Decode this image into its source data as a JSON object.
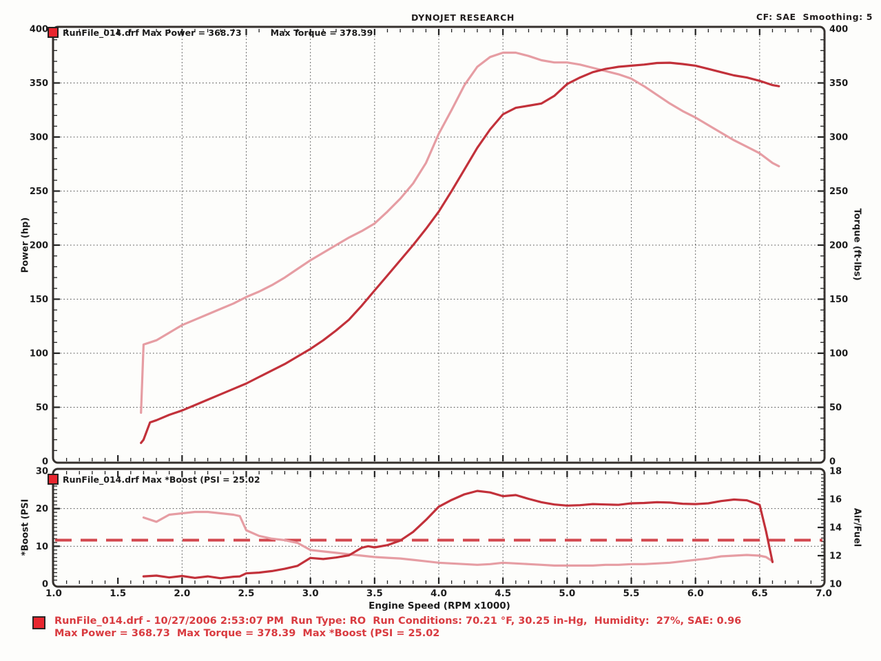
{
  "header": {
    "title": "DYNOJET RESEARCH",
    "correction_smoothing": "CF: SAE  Smoothing: 5"
  },
  "top_chart": {
    "legend": {
      "power_text": "RunFile_014.drf Max Power = 368.73",
      "torque_text": "Max Torque = 378.39"
    },
    "y_left": {
      "title": "Power (hp)",
      "min": 0,
      "max": 400,
      "ticks": [
        400,
        350,
        300,
        250,
        200,
        150,
        100,
        50,
        0
      ]
    },
    "y_right": {
      "title": "Torque (ft-lbs)",
      "min": 0,
      "max": 400,
      "ticks": [
        400,
        350,
        300,
        250,
        200,
        150,
        100,
        50,
        0
      ]
    }
  },
  "bottom_chart": {
    "legend": {
      "boost_text": "RunFile_014.drf Max *Boost (PSI = 25.02"
    },
    "y_left": {
      "title": "*Boost (PSI",
      "min": 0,
      "max": 30,
      "ticks": [
        30,
        20,
        10,
        0
      ]
    },
    "y_right": {
      "title": "Air/Fuel",
      "min": 10,
      "max": 18,
      "ticks": [
        18,
        16,
        14,
        12,
        10
      ]
    }
  },
  "x_axis": {
    "title": "Engine Speed (RPM x1000)",
    "min": 1.0,
    "max": 7.0,
    "tick_labels": [
      "1.0",
      "1.5",
      "2.0",
      "2.5",
      "3.0",
      "3.5",
      "4.0",
      "4.5",
      "5.0",
      "5.5",
      "6.0",
      "6.5",
      "7.0"
    ]
  },
  "footer": {
    "line1": "RunFile_014.drf - 10/27/2006 2:53:07 PM  Run Type: RO  Run Conditions: 70.21 °F, 30.25 in-Hg,  Humidity:  27%, SAE: 0.96",
    "line2": "Max Power = 368.73  Max Torque = 378.39  Max *Boost (PSI = 25.02"
  },
  "colors": {
    "power_curve": "#c2313a",
    "torque_curve": "#e69da3",
    "boost_curve": "#c2313a",
    "air_fuel_curve": "#e69da3",
    "reference_dash": "#d2474e",
    "legend_square": "#e8262f",
    "footer_text": "#d93b40",
    "grid": "#4a4a4a",
    "frame": "#35302d",
    "text": "#1c1c1c"
  },
  "chart_data": [
    {
      "type": "line",
      "title": "Power and Torque vs Engine Speed",
      "xlabel": "Engine Speed (RPM x1000)",
      "x_range": [
        1.0,
        7.0
      ],
      "y_left_label": "Power (hp)",
      "y_left_range": [
        0,
        400
      ],
      "y_right_label": "Torque (ft-lbs)",
      "y_right_range": [
        0,
        400
      ],
      "grid": "dotted majors every 0.5 RPM and 50 units",
      "legend_position": "top-left inside plot",
      "x": [
        1.68,
        1.7,
        1.75,
        1.8,
        1.9,
        2.0,
        2.1,
        2.2,
        2.3,
        2.4,
        2.5,
        2.6,
        2.7,
        2.8,
        2.9,
        3.0,
        3.1,
        3.2,
        3.3,
        3.4,
        3.5,
        3.6,
        3.7,
        3.8,
        3.9,
        4.0,
        4.1,
        4.2,
        4.3,
        4.4,
        4.5,
        4.6,
        4.7,
        4.8,
        4.9,
        5.0,
        5.1,
        5.2,
        5.3,
        5.4,
        5.5,
        5.6,
        5.7,
        5.8,
        5.9,
        6.0,
        6.1,
        6.2,
        6.3,
        6.4,
        6.5,
        6.6,
        6.65
      ],
      "series": [
        {
          "name": "Power (hp)",
          "axis": "left",
          "max": 368.73,
          "color_key": "power_curve",
          "values": [
            17,
            20,
            36,
            38,
            43,
            47,
            52,
            57,
            62,
            67,
            72,
            78,
            84,
            90,
            97,
            104,
            112,
            121,
            131,
            144,
            158,
            172,
            186,
            200,
            215,
            231,
            250,
            270,
            290,
            307,
            321,
            327,
            329,
            331,
            338,
            349,
            355,
            360,
            363,
            365,
            366,
            367,
            368.5,
            368.7,
            367.5,
            366,
            363,
            360,
            357,
            355,
            352,
            348,
            347
          ]
        },
        {
          "name": "Torque (ft-lbs)",
          "axis": "right",
          "max": 378.39,
          "color_key": "torque_curve",
          "values": [
            45,
            108,
            110,
            112,
            119,
            126,
            131,
            136,
            141,
            146,
            152,
            157,
            163,
            170,
            178,
            186,
            193,
            200,
            207,
            213,
            220,
            231,
            243,
            257,
            276,
            303,
            325,
            348,
            365,
            374,
            378,
            378,
            375,
            371,
            369,
            369,
            367,
            364,
            361,
            358,
            354,
            347,
            339,
            331,
            324,
            318,
            311,
            304,
            297,
            291,
            285,
            276,
            273
          ]
        }
      ]
    },
    {
      "type": "line",
      "title": "Boost and Air/Fuel vs Engine Speed",
      "xlabel": "Engine Speed (RPM x1000)",
      "x_range": [
        1.0,
        7.0
      ],
      "y_left_label": "*Boost (PSI",
      "y_left_range": [
        0,
        30
      ],
      "y_right_label": "Air/Fuel",
      "y_right_range": [
        10,
        18
      ],
      "grid": "dotted majors every 0.5 RPM and 10 PSI",
      "reference_line": {
        "style": "dashed",
        "axis": "right",
        "value": 13.1,
        "note": "horizontal dashed red line across plot"
      },
      "x": [
        1.7,
        1.8,
        1.9,
        2.0,
        2.1,
        2.2,
        2.3,
        2.4,
        2.45,
        2.5,
        2.6,
        2.7,
        2.8,
        2.9,
        3.0,
        3.1,
        3.2,
        3.3,
        3.4,
        3.45,
        3.5,
        3.6,
        3.7,
        3.8,
        3.9,
        4.0,
        4.1,
        4.2,
        4.3,
        4.4,
        4.5,
        4.6,
        4.7,
        4.8,
        4.9,
        5.0,
        5.1,
        5.2,
        5.3,
        5.4,
        5.5,
        5.6,
        5.7,
        5.8,
        5.9,
        6.0,
        6.1,
        6.2,
        6.3,
        6.4,
        6.5,
        6.55,
        6.6
      ],
      "series": [
        {
          "name": "*Boost (PSI",
          "axis": "left",
          "max": 25.02,
          "color_key": "boost_curve",
          "values": [
            2.0,
            2.2,
            1.7,
            2.1,
            1.6,
            2.0,
            1.5,
            1.9,
            2.0,
            2.8,
            3.0,
            3.4,
            4.0,
            4.8,
            6.9,
            6.6,
            7.0,
            7.6,
            9.6,
            10.0,
            9.7,
            10.3,
            11.5,
            13.8,
            17.0,
            20.5,
            22.3,
            23.8,
            24.7,
            24.3,
            23.3,
            23.6,
            22.6,
            21.7,
            21.1,
            20.8,
            20.9,
            21.2,
            21.1,
            21.0,
            21.4,
            21.5,
            21.7,
            21.6,
            21.3,
            21.2,
            21.4,
            22.0,
            22.4,
            22.2,
            21.0,
            14.0,
            5.8
          ]
        },
        {
          "name": "Air/Fuel",
          "axis": "right",
          "color_key": "air_fuel_curve",
          "values": [
            14.7,
            14.4,
            14.9,
            15.0,
            15.1,
            15.1,
            15.0,
            14.9,
            14.8,
            13.8,
            13.4,
            13.2,
            13.1,
            12.9,
            12.4,
            12.3,
            12.2,
            12.1,
            12.0,
            11.95,
            11.9,
            11.85,
            11.8,
            11.7,
            11.6,
            11.5,
            11.45,
            11.4,
            11.35,
            11.4,
            11.5,
            11.45,
            11.4,
            11.35,
            11.3,
            11.3,
            11.3,
            11.3,
            11.35,
            11.35,
            11.4,
            11.4,
            11.45,
            11.5,
            11.6,
            11.7,
            11.8,
            11.95,
            12.0,
            12.05,
            12.0,
            11.9,
            11.6
          ]
        }
      ]
    }
  ]
}
